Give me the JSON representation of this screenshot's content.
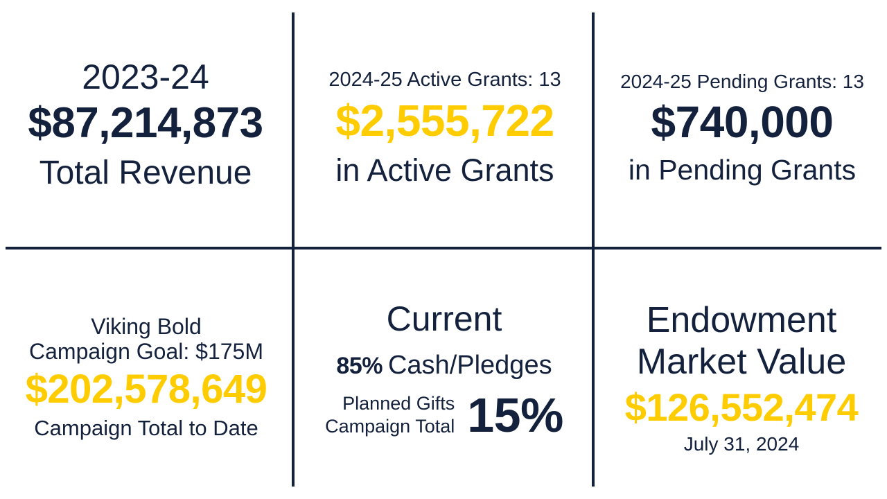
{
  "colors": {
    "navy": "#14213d",
    "gold": "#ffcc00",
    "background": "#ffffff"
  },
  "revenue": {
    "year": "2023-24",
    "amount": "$87,214,873",
    "label": "Total Revenue"
  },
  "active_grants": {
    "subtitle": "2024-25 Active Grants: 13",
    "amount": "$2,555,722",
    "label": "in Active Grants"
  },
  "pending_grants": {
    "subtitle": "2024-25 Pending Grants: 13",
    "amount": "$740,000",
    "label": "in Pending Grants"
  },
  "campaign": {
    "name": "Viking Bold",
    "goal": "Campaign Goal: $175M",
    "amount": "$202,578,649",
    "label": "Campaign Total to Date"
  },
  "current": {
    "title": "Current",
    "cash_pct": "85%",
    "cash_label": "Cash/Pledges",
    "planned_line1": "Planned Gifts",
    "planned_line2": "Campaign Total",
    "planned_pct": "15%"
  },
  "endowment": {
    "title_line1": "Endowment",
    "title_line2": "Market Value",
    "amount": "$126,552,474",
    "date": "July 31, 2024"
  }
}
